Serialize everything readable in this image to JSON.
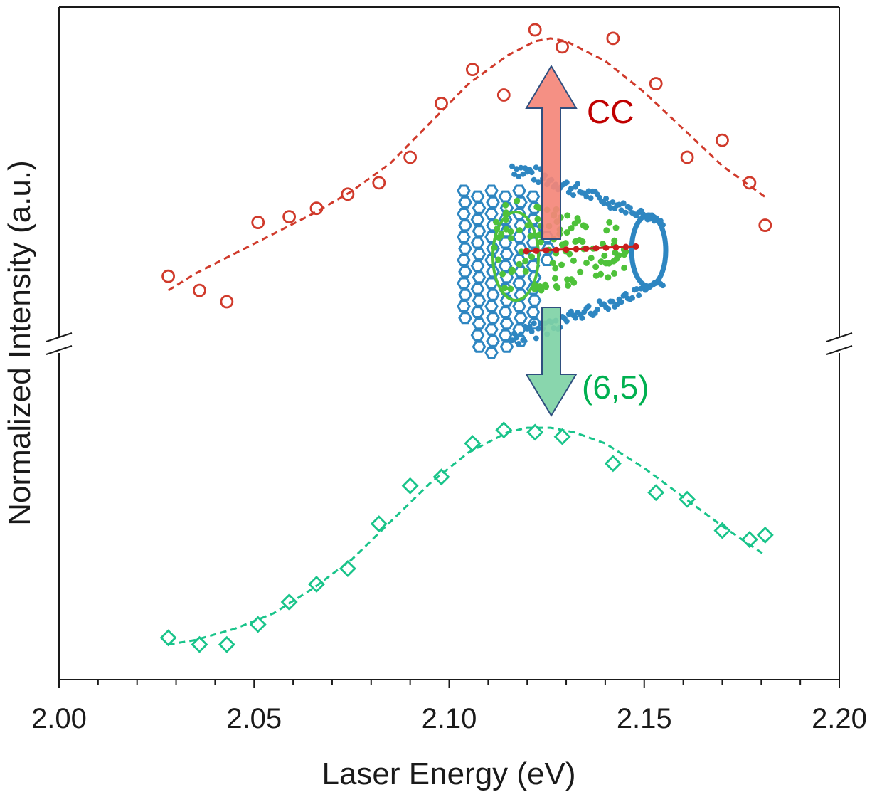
{
  "chart_data": {
    "type": "scatter",
    "xlabel": "Laser Energy (eV)",
    "ylabel": "Normalized Intensity (a.u.)",
    "xlim": [
      2.0,
      2.2
    ],
    "x_ticks": [
      "2.00",
      "2.05",
      "2.10",
      "2.15",
      "2.20"
    ],
    "y_ticks": [],
    "y_axis_break": true,
    "grid": false,
    "legend": "none",
    "panels": [
      {
        "name": "CC",
        "color": "#d03a2b",
        "marker": "circle",
        "ylim": [
          0,
          1
        ],
        "x": [
          2.028,
          2.036,
          2.043,
          2.051,
          2.059,
          2.066,
          2.074,
          2.082,
          2.09,
          2.098,
          2.106,
          2.114,
          2.122,
          2.129,
          2.142,
          2.153,
          2.161,
          2.17,
          2.177,
          2.181
        ],
        "values": [
          0.1,
          0.05,
          0.01,
          0.29,
          0.31,
          0.34,
          0.39,
          0.43,
          0.52,
          0.71,
          0.83,
          0.74,
          0.97,
          0.91,
          0.94,
          0.78,
          0.52,
          0.58,
          0.43,
          0.28
        ],
        "fit": {
          "x": [
            2.028,
            2.035,
            2.045,
            2.055,
            2.065,
            2.075,
            2.085,
            2.095,
            2.105,
            2.115,
            2.122,
            2.126,
            2.13,
            2.14,
            2.15,
            2.16,
            2.17,
            2.181
          ],
          "values": [
            0.05,
            0.11,
            0.18,
            0.25,
            0.32,
            0.4,
            0.5,
            0.64,
            0.78,
            0.88,
            0.93,
            0.94,
            0.93,
            0.86,
            0.75,
            0.62,
            0.49,
            0.38
          ]
        }
      },
      {
        "name": "(6,5)",
        "color": "#19c48a",
        "marker": "diamond",
        "ylim": [
          0,
          1
        ],
        "x": [
          2.028,
          2.036,
          2.043,
          2.051,
          2.059,
          2.066,
          2.074,
          2.082,
          2.09,
          2.098,
          2.106,
          2.114,
          2.122,
          2.129,
          2.142,
          2.153,
          2.161,
          2.17,
          2.177,
          2.181
        ],
        "values": [
          0.05,
          0.02,
          0.02,
          0.11,
          0.21,
          0.29,
          0.36,
          0.56,
          0.73,
          0.77,
          0.92,
          0.98,
          0.97,
          0.95,
          0.83,
          0.7,
          0.67,
          0.53,
          0.49,
          0.51
        ],
        "fit": {
          "x": [
            2.028,
            2.035,
            2.045,
            2.055,
            2.065,
            2.075,
            2.085,
            2.095,
            2.105,
            2.115,
            2.12,
            2.126,
            2.132,
            2.14,
            2.15,
            2.16,
            2.17,
            2.181
          ],
          "values": [
            0.02,
            0.04,
            0.09,
            0.16,
            0.27,
            0.4,
            0.57,
            0.74,
            0.88,
            0.97,
            0.99,
            0.99,
            0.97,
            0.92,
            0.81,
            0.68,
            0.55,
            0.42
          ]
        }
      }
    ],
    "annotations": [
      {
        "text": "CC",
        "color": "#c00000"
      },
      {
        "text": "(6,5)",
        "color": "#00b050"
      }
    ]
  },
  "colors": {
    "axis": "#1a1a1a",
    "arrow_up_fill": "#f4877a",
    "arrow_down_fill": "#7fd3a6",
    "arrow_stroke": "#2f4f7f",
    "tube_outer": "#2e86c1",
    "tube_inner": "#4ec23a",
    "chain": "#c81e1e"
  },
  "icons": [
    "nanotube-illustration",
    "arrow-up-icon",
    "arrow-down-icon"
  ]
}
